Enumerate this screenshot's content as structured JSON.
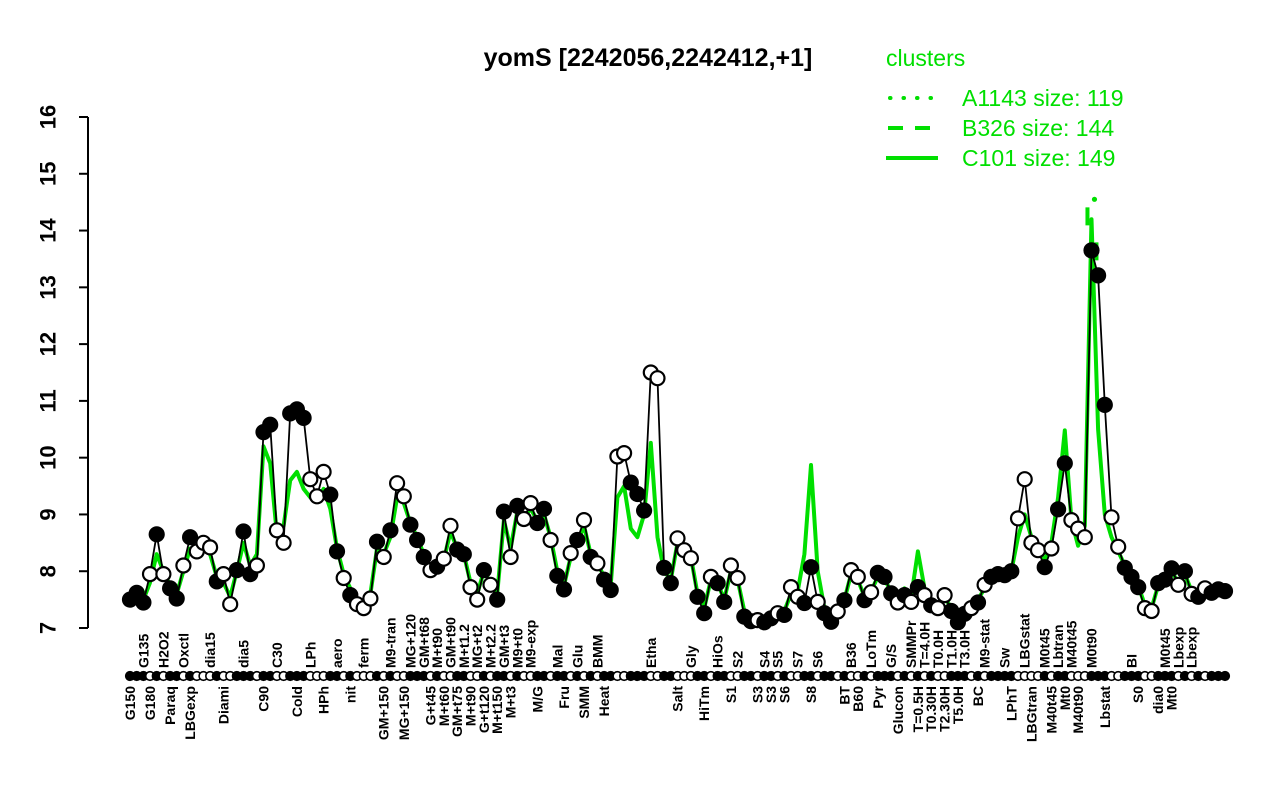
{
  "title": "yomS [2242056,2242412,+1]",
  "legend": {
    "header": "clusters",
    "items": [
      {
        "line_style": "dotted",
        "label": "A1143 size: 119"
      },
      {
        "line_style": "dashed",
        "label": "B326 size: 144"
      },
      {
        "line_style": "solid",
        "label": "C101 size: 149"
      }
    ]
  },
  "colors": {
    "cluster_green": "#00DF00",
    "series_black": "#000000",
    "background": "#FFFFFF"
  },
  "chart_data": {
    "type": "line",
    "title": "yomS [2242056,2242412,+1]",
    "ylabel": "",
    "xlabel": "",
    "ylim": [
      7,
      16
    ],
    "yticks": [
      "7",
      "8",
      "9",
      "10",
      "11",
      "12",
      "13",
      "14",
      "15",
      "16"
    ],
    "grid": false,
    "legend_position": "top-right",
    "series": [
      {
        "name": "yomS expression (black, per-condition points)",
        "color": "black",
        "style": "solid-with-markers",
        "values": [
          7.5,
          7.62,
          7.45,
          7.95,
          8.65,
          7.95,
          7.7,
          7.52,
          8.1,
          8.6,
          8.35,
          8.5,
          8.42,
          7.82,
          7.95,
          7.42,
          8.02,
          8.7,
          7.95,
          8.1,
          10.45,
          10.58,
          8.72,
          8.5,
          10.78,
          10.85,
          10.7,
          9.62,
          9.32,
          9.75,
          9.35,
          8.35,
          7.88,
          7.58,
          7.42,
          7.35,
          7.52,
          8.52,
          8.25,
          8.72,
          9.55,
          9.32,
          8.82,
          8.55,
          8.25,
          8.02,
          8.08,
          8.22,
          8.8,
          8.38,
          8.3,
          7.72,
          7.5,
          8.02,
          7.76,
          7.5,
          9.05,
          8.25,
          9.15,
          8.92,
          9.2,
          8.85,
          9.1,
          8.55,
          7.92,
          7.68,
          8.32,
          8.55,
          8.9,
          8.25,
          8.14,
          7.85,
          7.67,
          10.02,
          10.08,
          9.56,
          9.36,
          9.07,
          11.5,
          11.4,
          8.06,
          7.79,
          8.58,
          8.37,
          8.23,
          7.55,
          7.26,
          7.9,
          7.79,
          7.46,
          8.1,
          7.88,
          7.2,
          7.12,
          7.14,
          7.1,
          7.17,
          7.26,
          7.23,
          7.72,
          7.55,
          7.44,
          8.07,
          7.46,
          7.26,
          7.11,
          7.29,
          7.49,
          8.02,
          7.9,
          7.49,
          7.63,
          7.97,
          7.9,
          7.61,
          7.45,
          7.58,
          7.46,
          7.72,
          7.58,
          7.4,
          7.35,
          7.58,
          7.3,
          7.1,
          7.25,
          7.35,
          7.45,
          7.76,
          7.9,
          7.95,
          7.93,
          8.0,
          8.93,
          9.62,
          8.5,
          8.37,
          8.07,
          8.4,
          9.09,
          9.9,
          8.9,
          8.75,
          8.6,
          13.65,
          13.21,
          10.93,
          8.95,
          8.43,
          8.06,
          7.9,
          7.72,
          7.35,
          7.3,
          7.79,
          7.85,
          8.05,
          7.76,
          8.0,
          7.6,
          7.55,
          7.7,
          7.62,
          7.68,
          7.65
        ],
        "marker_pattern_filled_f_open_o": "fffofoffofooofoofffoffoofffoooffofooofofoofffofooffoofoffofooffoffofofoffoofffooffoooffoffooffoffofooffoffofoofofffofofofoofffofoffffoooofoffooofffoofffoofffofofofff"
      },
      {
        "name": "C101 cluster mean (green solid)",
        "color": "green",
        "style": "solid",
        "values": [
          7.55,
          7.6,
          7.5,
          7.8,
          8.3,
          8.0,
          7.75,
          7.6,
          8.0,
          8.4,
          8.3,
          8.45,
          8.3,
          7.9,
          7.8,
          7.55,
          8.0,
          8.5,
          8.1,
          8.3,
          10.2,
          9.9,
          8.65,
          8.8,
          9.6,
          9.75,
          9.45,
          9.3,
          9.25,
          9.45,
          9.1,
          8.4,
          7.95,
          7.7,
          7.5,
          7.45,
          7.6,
          8.4,
          8.3,
          8.6,
          9.3,
          9.2,
          8.85,
          8.6,
          8.3,
          8.05,
          8.1,
          8.2,
          8.7,
          8.4,
          8.3,
          7.8,
          7.6,
          8.0,
          7.8,
          7.6,
          8.9,
          8.4,
          9.05,
          8.95,
          9.1,
          8.9,
          9.0,
          8.6,
          8.0,
          7.75,
          8.25,
          8.5,
          8.8,
          8.3,
          8.15,
          7.9,
          7.75,
          9.3,
          9.5,
          8.75,
          8.6,
          9.0,
          10.26,
          8.6,
          8.0,
          7.85,
          8.5,
          8.4,
          8.25,
          7.6,
          7.35,
          7.85,
          7.8,
          7.5,
          8.0,
          7.85,
          7.3,
          7.2,
          7.2,
          7.15,
          7.2,
          7.3,
          7.3,
          7.6,
          7.65,
          8.3,
          9.87,
          8.0,
          7.35,
          7.2,
          7.35,
          7.5,
          7.95,
          7.85,
          7.55,
          7.65,
          7.9,
          7.85,
          7.65,
          7.5,
          7.7,
          7.55,
          8.35,
          7.7,
          7.45,
          7.4,
          7.55,
          7.35,
          7.2,
          7.3,
          7.4,
          7.5,
          7.7,
          7.85,
          7.9,
          7.9,
          8.0,
          8.6,
          9.0,
          8.6,
          8.35,
          8.2,
          8.5,
          9.3,
          10.48,
          8.9,
          8.45,
          8.8,
          14.2,
          10.5,
          9.0,
          8.6,
          8.35,
          8.1,
          7.95,
          7.75,
          7.4,
          7.35,
          7.75,
          7.9,
          8.0,
          7.8,
          7.95,
          7.65,
          7.6,
          7.72,
          7.65,
          7.7,
          7.68
        ]
      },
      {
        "name": "A1143 cluster (green dotted, visible only at main peak)",
        "color": "green",
        "style": "dotted",
        "peak_index": 144,
        "peak_value": 14.55
      },
      {
        "name": "B326 cluster (green dashed, visible only at main peak)",
        "color": "green",
        "style": "dashed",
        "peak_index": 144,
        "peak_value": 14.25
      }
    ],
    "x_axis_label_rows": {
      "note": "condition labels, rotated 90deg, alternating above/below marker rug; index refers to data point position",
      "top": [
        {
          "label": "G135",
          "i": 2
        },
        {
          "label": "H2O2",
          "i": 5
        },
        {
          "label": "Oxctl",
          "i": 8
        },
        {
          "label": "dia15",
          "i": 12
        },
        {
          "label": "dia5",
          "i": 17
        },
        {
          "label": "C30",
          "i": 22
        },
        {
          "label": "LPh",
          "i": 27
        },
        {
          "label": "aero",
          "i": 31
        },
        {
          "label": "ferm",
          "i": 35
        },
        {
          "label": "M9-tran",
          "i": 39
        },
        {
          "label": "MG+120",
          "i": 42
        },
        {
          "label": "GM+t68",
          "i": 44
        },
        {
          "label": "M+t90",
          "i": 46
        },
        {
          "label": "GM+t90",
          "i": 48
        },
        {
          "label": "M+t1.2",
          "i": 50
        },
        {
          "label": "MG+t2",
          "i": 52
        },
        {
          "label": "M+t2.2",
          "i": 54
        },
        {
          "label": "GM+t3",
          "i": 56
        },
        {
          "label": "M9+t0",
          "i": 58
        },
        {
          "label": "M9-exp",
          "i": 60
        },
        {
          "label": "Mal",
          "i": 64
        },
        {
          "label": "Glu",
          "i": 67
        },
        {
          "label": "BMM",
          "i": 70
        },
        {
          "label": "Etha",
          "i": 78
        },
        {
          "label": "Gly",
          "i": 84
        },
        {
          "label": "HiOs",
          "i": 88
        },
        {
          "label": "S2",
          "i": 91
        },
        {
          "label": "S4",
          "i": 95
        },
        {
          "label": "S5",
          "i": 97
        },
        {
          "label": "S7",
          "i": 100
        },
        {
          "label": "S6",
          "i": 103
        },
        {
          "label": "B36",
          "i": 108
        },
        {
          "label": "LoTm",
          "i": 111
        },
        {
          "label": "G/S",
          "i": 114
        },
        {
          "label": "SMMPr",
          "i": 117
        },
        {
          "label": "T=4.0H",
          "i": 119
        },
        {
          "label": "T0.0H",
          "i": 121
        },
        {
          "label": "T1.0H",
          "i": 123
        },
        {
          "label": "T3.0H",
          "i": 125
        },
        {
          "label": "M9-stat",
          "i": 128
        },
        {
          "label": "Sw",
          "i": 131
        },
        {
          "label": "LBGstat",
          "i": 134
        },
        {
          "label": "M0t45",
          "i": 137
        },
        {
          "label": "Lbtran",
          "i": 139
        },
        {
          "label": "M40t45",
          "i": 141
        },
        {
          "label": "M0t90",
          "i": 144
        },
        {
          "label": "BI",
          "i": 150
        },
        {
          "label": "M0t45",
          "i": 155
        },
        {
          "label": "Lbexp",
          "i": 157
        },
        {
          "label": "Lbexp",
          "i": 159
        }
      ],
      "bottom": [
        {
          "label": "G150",
          "i": 0
        },
        {
          "label": "G180",
          "i": 3
        },
        {
          "label": "Paraq",
          "i": 6
        },
        {
          "label": "LBGexp",
          "i": 9
        },
        {
          "label": "Diami",
          "i": 14
        },
        {
          "label": "C90",
          "i": 20
        },
        {
          "label": "Cold",
          "i": 25
        },
        {
          "label": "HPh",
          "i": 29
        },
        {
          "label": "nit",
          "i": 33
        },
        {
          "label": "GM+150",
          "i": 38
        },
        {
          "label": "MG+150",
          "i": 41
        },
        {
          "label": "G+t45",
          "i": 45
        },
        {
          "label": "M+t60",
          "i": 47
        },
        {
          "label": "GM+t75",
          "i": 49
        },
        {
          "label": "M+t90",
          "i": 51
        },
        {
          "label": "G+t120",
          "i": 53
        },
        {
          "label": "M+t150",
          "i": 55
        },
        {
          "label": "M+t3",
          "i": 57
        },
        {
          "label": "M/G",
          "i": 61
        },
        {
          "label": "Fru",
          "i": 65
        },
        {
          "label": "SMM",
          "i": 68
        },
        {
          "label": "Heat",
          "i": 71
        },
        {
          "label": "Salt",
          "i": 82
        },
        {
          "label": "HiTm",
          "i": 86
        },
        {
          "label": "S1",
          "i": 90
        },
        {
          "label": "S3",
          "i": 94
        },
        {
          "label": "S3",
          "i": 96
        },
        {
          "label": "S6",
          "i": 98
        },
        {
          "label": "S8",
          "i": 102
        },
        {
          "label": "BT",
          "i": 107
        },
        {
          "label": "B60",
          "i": 109
        },
        {
          "label": "Pyr",
          "i": 112
        },
        {
          "label": "Glucon",
          "i": 115
        },
        {
          "label": "T=0.5H",
          "i": 118
        },
        {
          "label": "T0.30H",
          "i": 120
        },
        {
          "label": "T2.30H",
          "i": 122
        },
        {
          "label": "T5.0H",
          "i": 124
        },
        {
          "label": "BC",
          "i": 127
        },
        {
          "label": "LPhT",
          "i": 132
        },
        {
          "label": "LBGtran",
          "i": 135
        },
        {
          "label": "M40t45",
          "i": 138
        },
        {
          "label": "Mt0",
          "i": 140
        },
        {
          "label": "M40t90",
          "i": 142
        },
        {
          "label": "Lbstat",
          "i": 146
        },
        {
          "label": "S0",
          "i": 151
        },
        {
          "label": "dia0",
          "i": 154
        },
        {
          "label": "Mt0",
          "i": 156
        }
      ]
    }
  }
}
